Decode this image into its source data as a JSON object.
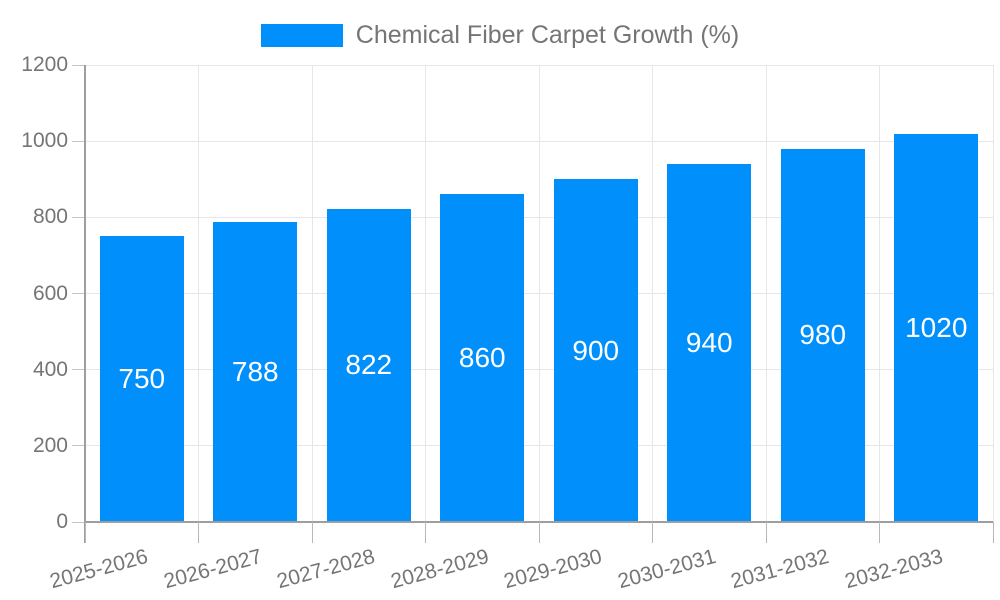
{
  "legend": {
    "label": "Chemical Fiber Carpet Growth (%)",
    "swatch_color": "#008FFB"
  },
  "colors": {
    "bar": "#008FFB",
    "axis_text": "#757575",
    "value_text": "#ffffff",
    "gridline": "#e6e6e6",
    "axis_line": "#9e9e9e",
    "tick": "#b8b8b8",
    "background": "#ffffff"
  },
  "chart_data": {
    "type": "bar",
    "title": "Chemical Fiber Carpet Growth (%)",
    "categories": [
      "2025-2026",
      "2026-2027",
      "2027-2028",
      "2028-2029",
      "2029-2030",
      "2030-2031",
      "2031-2032",
      "2032-2033"
    ],
    "series": [
      {
        "name": "Chemical Fiber Carpet Growth (%)",
        "color": "#008FFB",
        "values": [
          750,
          788,
          822,
          860,
          900,
          940,
          980,
          1020
        ]
      }
    ],
    "xlabel": "",
    "ylabel": "",
    "ylim": [
      0,
      1200
    ],
    "yticks": [
      0,
      200,
      400,
      600,
      800,
      1000,
      1200
    ],
    "grid": true,
    "legend_position": "top-center",
    "value_labels": "inside-middle",
    "x_label_rotation_deg": -15
  }
}
